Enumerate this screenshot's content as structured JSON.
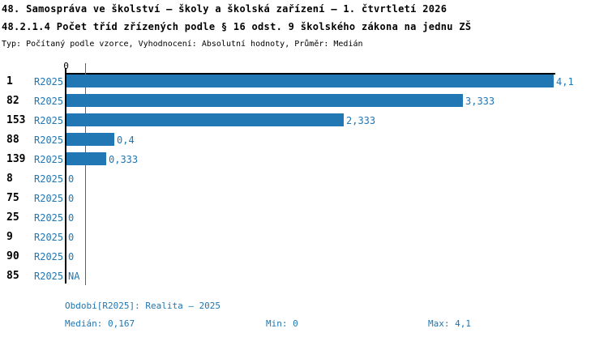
{
  "header": {
    "title_line1": "48. Samospráva ve školství – školy a školská zařízení – 1. čtvrtletí 2026",
    "title_line2": "48.2.1.4 Počet tříd zřízených podle § 16 odst. 9 školského zákona na jednu ZŠ",
    "meta_line": "Typ: Počítaný podle vzorce, Vyhodnocení: Absolutní hodnoty, Průměr: Medián"
  },
  "chart_data": {
    "type": "bar",
    "orientation": "horizontal",
    "title": "48.2.1.4 Počet tříd zřízených podle § 16 odst. 9 školského zákona na jednu ZŠ",
    "series_label": "R2025",
    "categories": [
      "1",
      "82",
      "153",
      "88",
      "139",
      "8",
      "75",
      "25",
      "9",
      "90",
      "85"
    ],
    "values": [
      4.1,
      3.333,
      2.333,
      0.4,
      0.333,
      0,
      0,
      0,
      0,
      0,
      null
    ],
    "value_labels": [
      "4,1",
      "3,333",
      "2,333",
      "0,4",
      "0,333",
      "0",
      "0",
      "0",
      "0",
      "0",
      "NA"
    ],
    "xlim": [
      0,
      4.1
    ],
    "x_tick_labels": [
      "0"
    ],
    "median": 0.167,
    "grid": false,
    "legend_position": "none",
    "bar_color": "#2077b4",
    "median_line_color": "#2077b4"
  },
  "footer": {
    "period_label": "Období[R2025]: Realita – 2025",
    "median_label": "Medián: 0,167",
    "min_label": "Min: 0",
    "max_label": "Max: 4,1"
  },
  "colors": {
    "accent_blue": "#2077b4",
    "text_black": "#000000",
    "background": "#ffffff"
  }
}
